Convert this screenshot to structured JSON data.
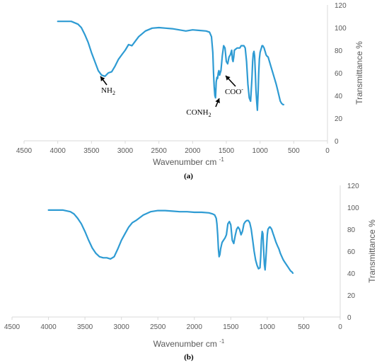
{
  "chart_data": [
    {
      "type": "line",
      "panel_label": "(a)",
      "xlabel": "Wavenumber cm",
      "xlabel_sup": "-1",
      "ylabel": "Transmittance %",
      "xlim": [
        4500,
        0
      ],
      "ylim": [
        0,
        120
      ],
      "x_ticks": [
        4500,
        4000,
        3500,
        3000,
        2500,
        2000,
        1500,
        1000,
        500,
        0
      ],
      "y_ticks": [
        0,
        20,
        40,
        60,
        80,
        100,
        120
      ],
      "y_axis_side": "right",
      "grid": false,
      "color": "#2e9bd3",
      "series": [
        {
          "x": [
            4000,
            3800,
            3700,
            3650,
            3600,
            3550,
            3500,
            3450,
            3400,
            3350,
            3300,
            3250,
            3200,
            3150,
            3100,
            3050,
            3000,
            2950,
            2900,
            2850,
            2800,
            2700,
            2600,
            2500,
            2400,
            2300,
            2200,
            2100,
            2000,
            1900,
            1800,
            1750,
            1720,
            1700,
            1690,
            1680,
            1670,
            1660,
            1650,
            1640,
            1630,
            1620,
            1610,
            1600,
            1590,
            1580,
            1560,
            1540,
            1520,
            1500,
            1480,
            1460,
            1440,
            1420,
            1410,
            1400,
            1390,
            1380,
            1360,
            1340,
            1320,
            1300,
            1280,
            1260,
            1240,
            1220,
            1200,
            1180,
            1160,
            1140,
            1120,
            1110,
            1100,
            1090,
            1080,
            1070,
            1060,
            1050,
            1040,
            1030,
            1020,
            1010,
            1000,
            990,
            980,
            970,
            960,
            950,
            940,
            930,
            920,
            910,
            900,
            880,
            860,
            840,
            820,
            800,
            780,
            760,
            740,
            720,
            700,
            680,
            660,
            650
          ],
          "y": [
            105.5,
            105.5,
            103,
            100,
            94,
            87,
            78,
            70,
            62,
            58,
            57,
            60,
            61,
            66,
            72,
            76,
            80,
            85,
            84,
            88,
            92,
            97,
            99.5,
            100,
            99.5,
            99,
            98,
            97,
            98,
            97.5,
            97,
            96,
            92,
            78,
            60,
            48,
            40,
            38,
            52,
            56,
            55,
            60,
            62,
            58,
            60,
            62,
            75,
            84,
            82,
            70,
            68,
            74,
            76,
            80,
            72,
            70,
            74,
            80,
            81,
            82,
            82,
            82,
            84,
            84,
            84,
            82,
            70,
            50,
            38,
            35,
            55,
            70,
            77,
            79,
            75,
            60,
            45,
            35,
            27,
            40,
            60,
            72,
            78,
            80,
            82,
            84,
            84,
            83,
            82,
            80,
            78,
            76,
            75,
            74,
            70,
            66,
            62,
            58,
            54,
            50,
            45,
            40,
            35,
            33,
            32,
            32
          ]
        }
      ],
      "annotations": [
        {
          "text": "NH",
          "sub": "2",
          "x": 3350,
          "y": 57
        },
        {
          "text": "CONH",
          "sub": "2",
          "x": 1650,
          "y": 39
        },
        {
          "text": "COO",
          "sup": "-",
          "x": 1620,
          "y": 62
        }
      ]
    },
    {
      "type": "line",
      "panel_label": "(b)",
      "xlabel": "Wavenumber cm",
      "xlabel_sup": "-1",
      "ylabel": "Transmittance %",
      "xlim": [
        4500,
        0
      ],
      "ylim": [
        0,
        120
      ],
      "x_ticks": [
        4500,
        4000,
        3500,
        3000,
        2500,
        2000,
        1500,
        1000,
        500,
        0
      ],
      "y_ticks": [
        0,
        20,
        40,
        60,
        80,
        100,
        120
      ],
      "y_axis_side": "right",
      "grid": false,
      "color": "#2e9bd3",
      "series": [
        {
          "x": [
            4000,
            3800,
            3700,
            3650,
            3600,
            3550,
            3500,
            3450,
            3400,
            3350,
            3300,
            3250,
            3200,
            3150,
            3100,
            3050,
            3000,
            2950,
            2900,
            2850,
            2800,
            2700,
            2600,
            2500,
            2400,
            2300,
            2200,
            2100,
            2000,
            1900,
            1800,
            1750,
            1720,
            1700,
            1690,
            1680,
            1670,
            1660,
            1650,
            1640,
            1630,
            1620,
            1600,
            1580,
            1560,
            1540,
            1520,
            1500,
            1480,
            1460,
            1440,
            1420,
            1400,
            1380,
            1360,
            1340,
            1320,
            1300,
            1280,
            1260,
            1240,
            1220,
            1200,
            1180,
            1160,
            1140,
            1120,
            1100,
            1090,
            1080,
            1070,
            1060,
            1050,
            1040,
            1030,
            1020,
            1010,
            1000,
            990,
            980,
            970,
            960,
            950,
            940,
            930,
            920,
            910,
            900,
            880,
            860,
            840,
            820,
            800,
            780,
            760,
            740,
            720,
            700,
            680,
            660,
            650
          ],
          "y": [
            97.5,
            97.5,
            96,
            94,
            90,
            85,
            78,
            70,
            63,
            58,
            55,
            54,
            54,
            53,
            55,
            62,
            70,
            76,
            82,
            86,
            88,
            93,
            96,
            97,
            97,
            96.5,
            96,
            96,
            95.5,
            95.5,
            95,
            94,
            93,
            90,
            85,
            75,
            62,
            55,
            57,
            62,
            65,
            68,
            70,
            72,
            75,
            85,
            87,
            84,
            70,
            67,
            74,
            80,
            82,
            80,
            75,
            78,
            85,
            87,
            88,
            88,
            86,
            80,
            70,
            60,
            52,
            47,
            44,
            45,
            55,
            70,
            78,
            76,
            62,
            48,
            43,
            52,
            64,
            75,
            80,
            81,
            82,
            82,
            81,
            80,
            78,
            76,
            74,
            72,
            68,
            65,
            62,
            58,
            55,
            52,
            50,
            48,
            46,
            44,
            42,
            41,
            40
          ]
        }
      ]
    }
  ]
}
